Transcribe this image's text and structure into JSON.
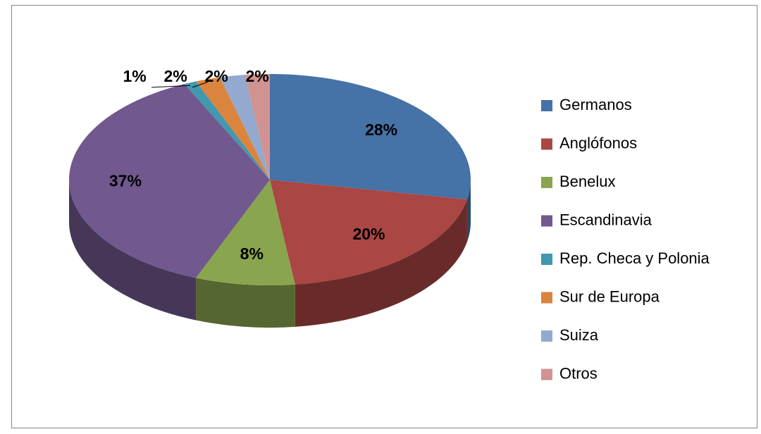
{
  "chart_data": {
    "type": "pie",
    "categories": [
      "Germanos",
      "Anglófonos",
      "Benelux",
      "Escandinavia",
      "Rep. Checa y Polonia",
      "Sur de Europa",
      "Suiza",
      "Otros"
    ],
    "values": [
      28,
      20,
      8,
      37,
      1,
      2,
      2,
      2
    ],
    "value_labels": [
      "28%",
      "20%",
      "8%",
      "37%",
      "1%",
      "2%",
      "2%",
      "2%"
    ],
    "colors": [
      "#4572a7",
      "#aa4643",
      "#89a54e",
      "#71588f",
      "#4198af",
      "#db843d",
      "#93a9cf",
      "#d19392"
    ],
    "legend": "right"
  }
}
